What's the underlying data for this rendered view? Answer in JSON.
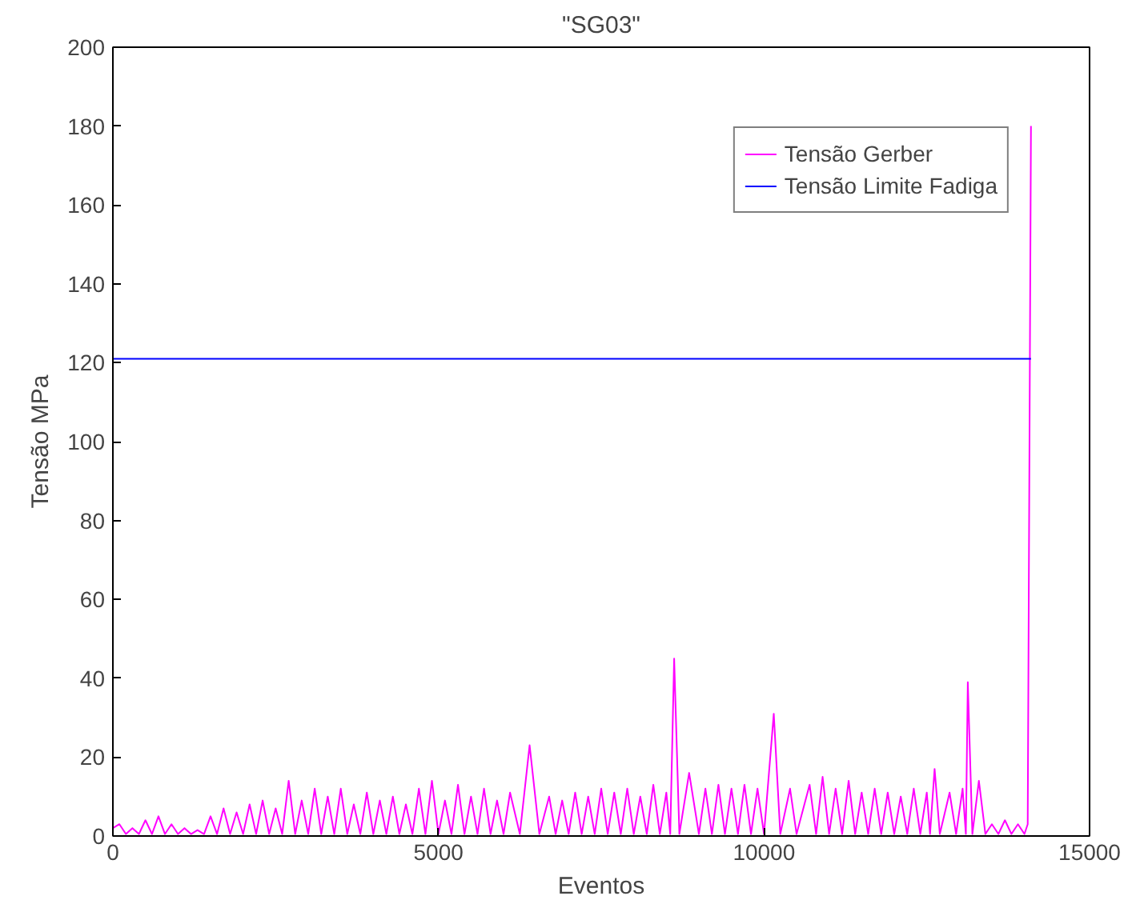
{
  "chart_data": {
    "type": "line",
    "title": "\"SG03\"",
    "xlabel": "Eventos",
    "ylabel": "Tensão MPa",
    "xlim": [
      0,
      15000
    ],
    "ylim": [
      0,
      200
    ],
    "xticks": [
      0,
      5000,
      10000,
      15000
    ],
    "yticks": [
      0,
      20,
      40,
      60,
      80,
      100,
      120,
      140,
      160,
      180,
      200
    ],
    "grid": false,
    "legend": "top right",
    "series": [
      {
        "name": "Tensão Gerber",
        "color": "#ff00ff",
        "x": [
          0,
          100,
          200,
          300,
          400,
          500,
          600,
          700,
          800,
          900,
          1000,
          1100,
          1200,
          1300,
          1400,
          1500,
          1600,
          1700,
          1800,
          1900,
          2000,
          2100,
          2200,
          2300,
          2400,
          2500,
          2600,
          2700,
          2800,
          2900,
          3000,
          3100,
          3200,
          3300,
          3400,
          3500,
          3600,
          3700,
          3800,
          3900,
          4000,
          4100,
          4200,
          4300,
          4400,
          4500,
          4600,
          4700,
          4800,
          4900,
          5000,
          5100,
          5200,
          5300,
          5400,
          5500,
          5600,
          5700,
          5800,
          5900,
          6000,
          6100,
          6250,
          6400,
          6550,
          6700,
          6800,
          6900,
          7000,
          7100,
          7200,
          7300,
          7400,
          7500,
          7600,
          7700,
          7800,
          7900,
          8000,
          8100,
          8200,
          8300,
          8400,
          8500,
          8560,
          8620,
          8700,
          8850,
          9000,
          9100,
          9200,
          9300,
          9400,
          9500,
          9600,
          9700,
          9800,
          9900,
          10000,
          10150,
          10250,
          10400,
          10500,
          10700,
          10800,
          10900,
          11000,
          11100,
          11200,
          11300,
          11400,
          11500,
          11600,
          11700,
          11800,
          11900,
          12000,
          12100,
          12200,
          12300,
          12400,
          12500,
          12550,
          12620,
          12700,
          12850,
          12950,
          13050,
          13100,
          13130,
          13200,
          13300,
          13400,
          13500,
          13600,
          13700,
          13800,
          13900,
          14000,
          14050,
          14100
        ],
        "values": [
          2,
          3,
          0.5,
          2,
          0.5,
          4,
          0.5,
          5,
          0.5,
          3,
          0.5,
          2,
          0.5,
          1.5,
          0.5,
          5,
          0.5,
          7,
          0.5,
          6,
          0.5,
          8,
          0.5,
          9,
          0.5,
          7,
          0.5,
          14,
          0.5,
          9,
          0.5,
          12,
          0.5,
          10,
          0.5,
          12,
          0.5,
          8,
          0.5,
          11,
          0.5,
          9,
          0.5,
          10,
          0.5,
          8,
          0.5,
          12,
          0.5,
          14,
          0.5,
          9,
          0.5,
          13,
          0.5,
          10,
          0.5,
          12,
          0.5,
          9,
          0.5,
          11,
          0.5,
          23,
          0.5,
          10,
          0.5,
          9,
          0.5,
          11,
          0.5,
          10,
          0.5,
          12,
          0.5,
          11,
          0.5,
          12,
          0.5,
          10,
          0.5,
          13,
          0.5,
          11,
          0.5,
          45,
          0.5,
          16,
          0.5,
          12,
          0.5,
          13,
          0.5,
          12,
          0.5,
          13,
          0.5,
          12,
          0.5,
          31,
          0.5,
          12,
          0.5,
          13,
          0.5,
          15,
          0.5,
          12,
          0.5,
          14,
          0.5,
          11,
          0.5,
          12,
          0.5,
          11,
          0.5,
          10,
          0.5,
          12,
          0.5,
          11,
          0.5,
          17,
          0.5,
          11,
          0.5,
          12,
          0.5,
          39,
          0.5,
          14,
          0.5,
          3,
          0.5,
          4,
          0.5,
          3,
          0.5,
          3,
          180
        ]
      },
      {
        "name": "Tensão Limite Fadiga",
        "color": "#0000ff",
        "x": [
          0,
          14100
        ],
        "values": [
          121,
          121
        ]
      }
    ]
  }
}
